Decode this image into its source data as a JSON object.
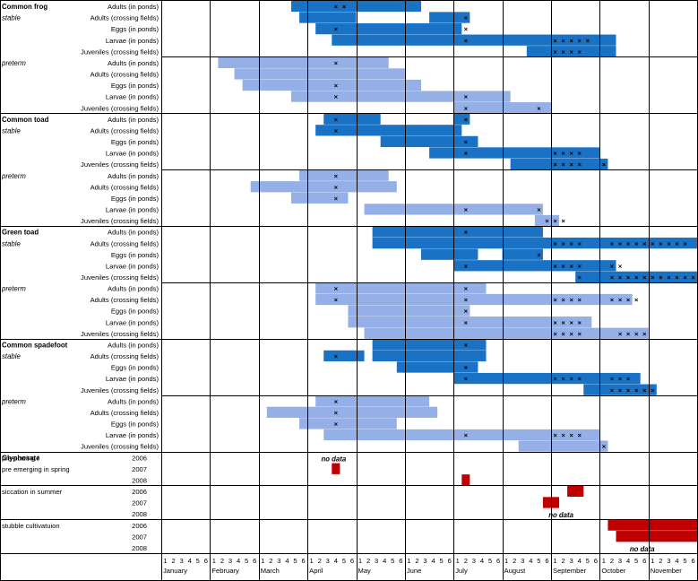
{
  "chart_data": {
    "type": "gantt",
    "months": [
      "January",
      "February",
      "March",
      "April",
      "May",
      "June",
      "July",
      "August",
      "September",
      "October",
      "November"
    ],
    "period_labels": [
      "1",
      "2",
      "3",
      "4",
      "5",
      "6"
    ],
    "colors": {
      "stable": "#1a72c4",
      "preterm": "#94b0e6",
      "glyphosate": "#c00000",
      "marker": "#000000"
    },
    "species": [
      {
        "name": "Common frog",
        "groups": [
          {
            "label": "stable",
            "type": "stable",
            "rows": [
              {
                "label": "Adults (in ponds)",
                "bars": [
                  [
                    16,
                    31
                  ]
                ],
                "x": [
                  21,
                  22
                ]
              },
              {
                "label": "Adults (crossing fields)",
                "bars": [
                  [
                    17,
                    23
                  ],
                  [
                    33,
                    37
                  ]
                ],
                "x": [
                  37
                ]
              },
              {
                "label": "Eggs (in ponds)",
                "bars": [
                  [
                    19,
                    36
                  ]
                ],
                "x": [
                  21,
                  37
                ]
              },
              {
                "label": "Larvae (in ponds)",
                "bars": [
                  [
                    21,
                    55
                  ]
                ],
                "x": [
                  37,
                  48,
                  49,
                  50,
                  51,
                  52
                ]
              },
              {
                "label": "Juveniles (crossing fields)",
                "bars": [
                  [
                    45,
                    55
                  ]
                ],
                "x": [
                  48,
                  49,
                  50,
                  51
                ]
              }
            ]
          },
          {
            "label": "preterm",
            "type": "preterm",
            "rows": [
              {
                "label": "Adults (in ponds)",
                "bars": [
                  [
                    7,
                    27
                  ]
                ],
                "x": [
                  21
                ]
              },
              {
                "label": "Adults (crossing fields)",
                "bars": [
                  [
                    9,
                    29
                  ]
                ],
                "x": []
              },
              {
                "label": "Eggs (in ponds)",
                "bars": [
                  [
                    10,
                    31
                  ]
                ],
                "x": [
                  21
                ]
              },
              {
                "label": "Larvae (in ponds)",
                "bars": [
                  [
                    16,
                    42
                  ]
                ],
                "x": [
                  21,
                  37
                ]
              },
              {
                "label": "Juveniles (crossing fields)",
                "bars": [
                  [
                    36,
                    47
                  ]
                ],
                "x": [
                  37,
                  46
                ]
              }
            ]
          }
        ]
      },
      {
        "name": "Common toad",
        "groups": [
          {
            "label": "stable",
            "type": "stable",
            "rows": [
              {
                "label": "Adults (in ponds)",
                "bars": [
                  [
                    20,
                    26
                  ],
                  [
                    36,
                    37
                  ]
                ],
                "x": [
                  21,
                  37
                ]
              },
              {
                "label": "Adults (crossing fields)",
                "bars": [
                  [
                    19,
                    36
                  ]
                ],
                "x": [
                  21
                ]
              },
              {
                "label": "Eggs (in ponds)",
                "bars": [
                  [
                    27,
                    38
                  ]
                ],
                "x": [
                  37
                ]
              },
              {
                "label": "Larvae (in ponds)",
                "bars": [
                  [
                    33,
                    53
                  ]
                ],
                "x": [
                  37,
                  48,
                  49,
                  50,
                  51
                ]
              },
              {
                "label": "Juveniles (crossing fields)",
                "bars": [
                  [
                    43,
                    54
                  ]
                ],
                "x": [
                  48,
                  49,
                  50,
                  51,
                  54
                ]
              }
            ]
          },
          {
            "label": "preterm",
            "type": "preterm",
            "rows": [
              {
                "label": "Adults (in ponds)",
                "bars": [
                  [
                    17,
                    27
                  ]
                ],
                "x": [
                  21
                ]
              },
              {
                "label": "Adults (crossing fields)",
                "bars": [
                  [
                    11,
                    28
                  ]
                ],
                "x": [
                  21
                ]
              },
              {
                "label": "Eggs (in ponds)",
                "bars": [
                  [
                    16,
                    22
                  ]
                ],
                "x": [
                  21
                ]
              },
              {
                "label": "Larvae (in ponds)",
                "bars": [
                  [
                    25,
                    46
                  ]
                ],
                "x": [
                  37,
                  46
                ]
              },
              {
                "label": "Juveniles (crossing fields)",
                "bars": [
                  [
                    46,
                    48
                  ]
                ],
                "x": [
                  47,
                  48,
                  49
                ]
              }
            ]
          }
        ]
      },
      {
        "name": "Green toad",
        "groups": [
          {
            "label": "stable",
            "type": "stable",
            "rows": [
              {
                "label": "Adults (in ponds)",
                "bars": [
                  [
                    26,
                    46
                  ]
                ],
                "x": [
                  37
                ]
              },
              {
                "label": "Adults (crossing fields)",
                "bars": [
                  [
                    26,
                    66
                  ]
                ],
                "x": [
                  48,
                  49,
                  50,
                  51,
                  55,
                  56,
                  57,
                  58,
                  59,
                  60,
                  61,
                  62,
                  63,
                  64
                ]
              },
              {
                "label": "Eggs (in ponds)",
                "bars": [
                  [
                    32,
                    38
                  ],
                  [
                    42,
                    46
                  ]
                ],
                "x": [
                  46
                ]
              },
              {
                "label": "Larvae (in ponds)",
                "bars": [
                  [
                    36,
                    55
                  ]
                ],
                "x": [
                  37,
                  48,
                  49,
                  50,
                  51,
                  55,
                  56
                ]
              },
              {
                "label": "Juveniles (crossing fields)",
                "bars": [
                  [
                    51,
                    67
                  ]
                ],
                "x": [
                  51,
                  55,
                  56,
                  57,
                  58,
                  59,
                  60,
                  61,
                  62,
                  63,
                  64,
                  65
                ]
              }
            ]
          },
          {
            "label": "preterm",
            "type": "preterm",
            "rows": [
              {
                "label": "Adults (in ponds)",
                "bars": [
                  [
                    19,
                    39
                  ]
                ],
                "x": [
                  21,
                  37
                ]
              },
              {
                "label": "Adults (crossing fields)",
                "bars": [
                  [
                    19,
                    57
                  ]
                ],
                "x": [
                  21,
                  37,
                  48,
                  49,
                  50,
                  51,
                  55,
                  56,
                  57,
                  58
                ]
              },
              {
                "label": "Eggs (in ponds)",
                "bars": [
                  [
                    23,
                    37
                  ]
                ],
                "x": [
                  37
                ]
              },
              {
                "label": "Larvae (in ponds)",
                "bars": [
                  [
                    23,
                    52
                  ]
                ],
                "x": [
                  37,
                  48,
                  49,
                  50,
                  51
                ]
              },
              {
                "label": "Juveniles (crossing fields)",
                "bars": [
                  [
                    25,
                    59
                  ]
                ],
                "x": [
                  48,
                  49,
                  50,
                  51,
                  56,
                  57,
                  58,
                  59
                ]
              }
            ]
          }
        ]
      },
      {
        "name": "Common spadefoot",
        "groups": [
          {
            "label": "stable",
            "type": "stable",
            "rows": [
              {
                "label": "Adults (in ponds)",
                "bars": [
                  [
                    26,
                    39
                  ]
                ],
                "x": [
                  37
                ]
              },
              {
                "label": "Adults (crossing fields)",
                "bars": [
                  [
                    20,
                    24
                  ],
                  [
                    26,
                    39
                  ]
                ],
                "x": [
                  21
                ]
              },
              {
                "label": "Eggs (in ponds)",
                "bars": [
                  [
                    29,
                    38
                  ]
                ],
                "x": [
                  37
                ]
              },
              {
                "label": "Larvae (in ponds)",
                "bars": [
                  [
                    36,
                    58
                  ]
                ],
                "x": [
                  37,
                  48,
                  49,
                  50,
                  51,
                  55,
                  56,
                  57
                ]
              },
              {
                "label": "Juveniles (crossing fields)",
                "bars": [
                  [
                    52,
                    60
                  ]
                ],
                "x": [
                  55,
                  56,
                  57,
                  58,
                  59,
                  60
                ]
              }
            ]
          },
          {
            "label": "preterm",
            "type": "preterm",
            "rows": [
              {
                "label": "Adults (in ponds)",
                "bars": [
                  [
                    19,
                    32
                  ]
                ],
                "x": [
                  21
                ]
              },
              {
                "label": "Adults (crossing fields)",
                "bars": [
                  [
                    13,
                    33
                  ]
                ],
                "x": [
                  21
                ]
              },
              {
                "label": "Eggs (in ponds)",
                "bars": [
                  [
                    17,
                    28
                  ]
                ],
                "x": [
                  21
                ]
              },
              {
                "label": "Larvae (in ponds)",
                "bars": [
                  [
                    20,
                    53
                  ]
                ],
                "x": [
                  37,
                  48,
                  49,
                  50,
                  51
                ]
              },
              {
                "label": "Juveniles (crossing fields)",
                "bars": [
                  [
                    44,
                    54
                  ]
                ],
                "x": [
                  54
                ]
              }
            ]
          }
        ]
      }
    ],
    "glyphosate": [
      {
        "name": "Glyphosate",
        "rows": [
          {
            "label": "pre-sowing /",
            "year": "2006",
            "bars": [],
            "note": "no data"
          },
          {
            "label": "pre emerging in spring",
            "year": "2007",
            "bars": [
              [
                21,
                21
              ]
            ],
            "note": ""
          },
          {
            "label": "",
            "year": "2008",
            "bars": [
              [
                37,
                37
              ]
            ],
            "note": ""
          }
        ]
      },
      {
        "name": "siccation in summer",
        "rows": [
          {
            "label": "",
            "year": "2006",
            "bars": [
              [
                50,
                51
              ]
            ],
            "note": ""
          },
          {
            "label": "",
            "year": "2007",
            "bars": [
              [
                47,
                48
              ]
            ],
            "note": ""
          },
          {
            "label": "",
            "year": "2008",
            "bars": [],
            "note": "no data"
          }
        ]
      },
      {
        "name": "stubble cultivatuion",
        "rows": [
          {
            "label": "",
            "year": "2006",
            "bars": [
              [
                55,
                66
              ]
            ],
            "note": ""
          },
          {
            "label": "",
            "year": "2007",
            "bars": [
              [
                56,
                67
              ]
            ],
            "note": ""
          },
          {
            "label": "",
            "year": "2008",
            "bars": [],
            "note": "no data"
          }
        ]
      }
    ]
  }
}
